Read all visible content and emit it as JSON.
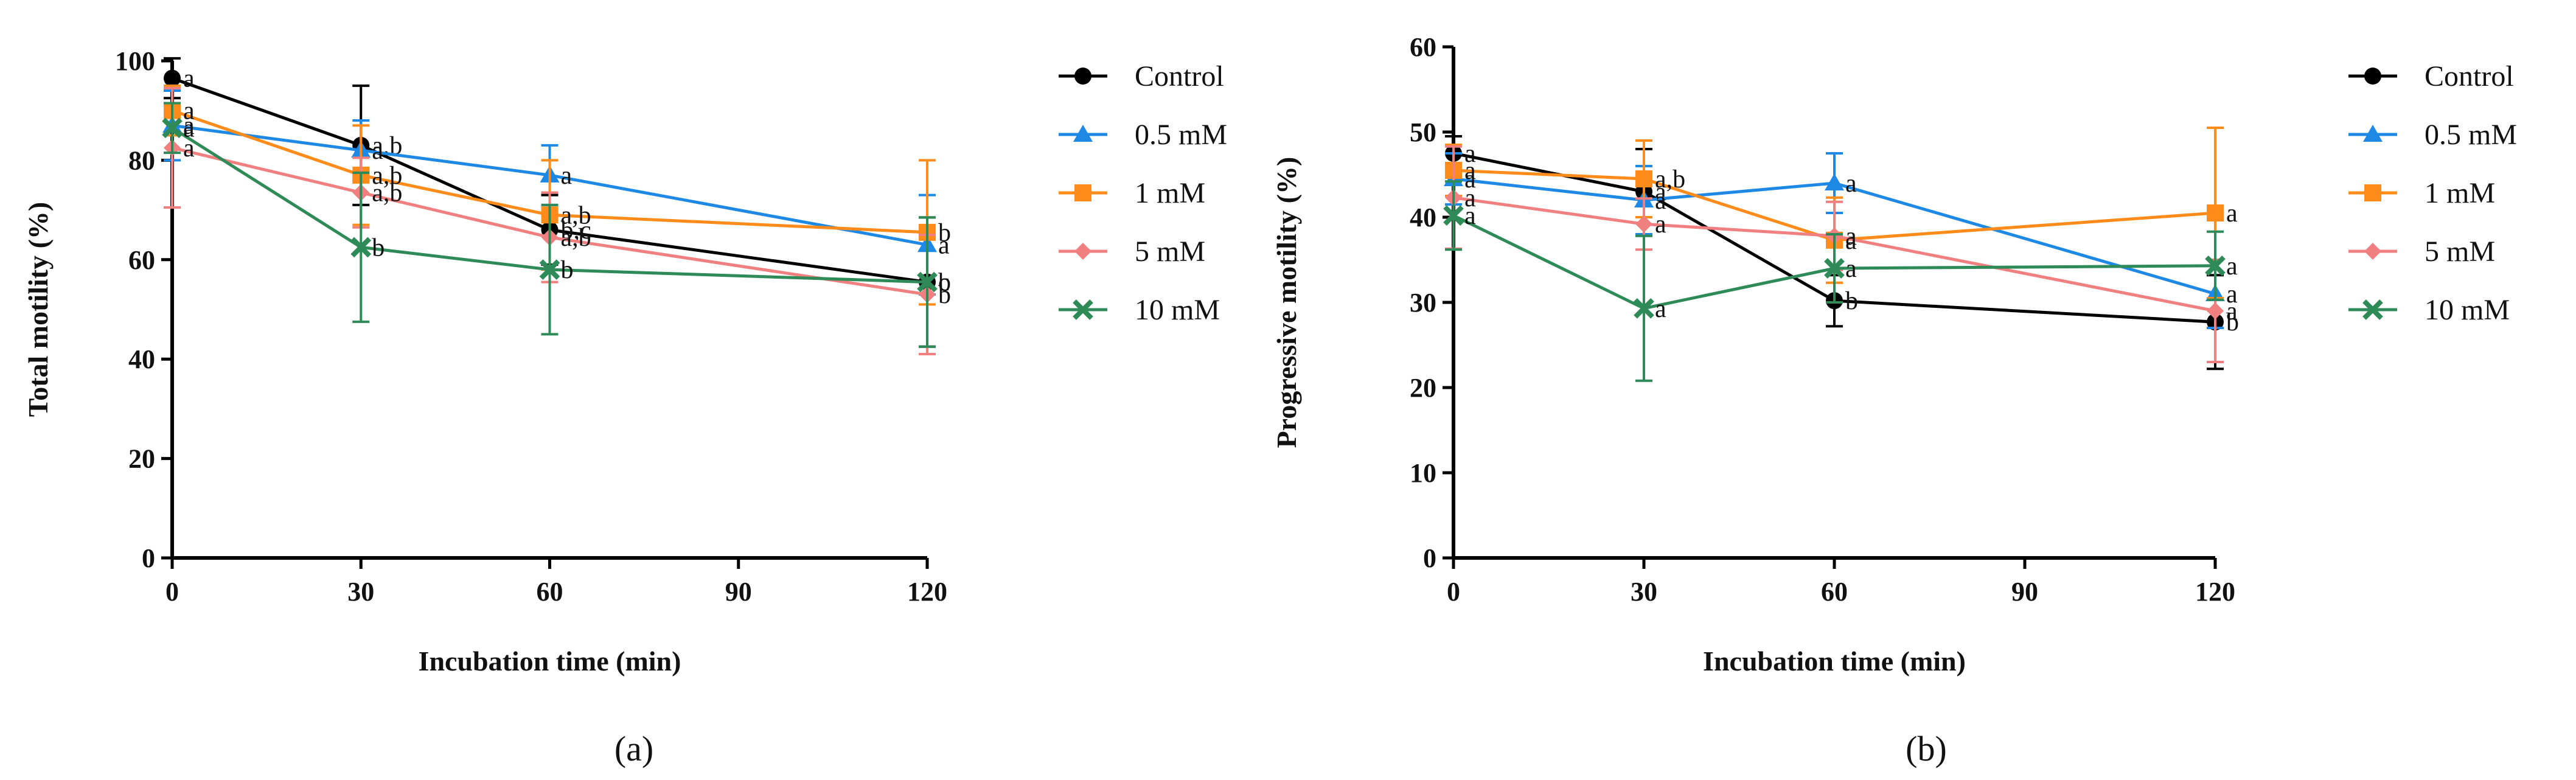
{
  "chart_data": [
    {
      "type": "line",
      "panel_label": "(a)",
      "xlabel": "Incubation time (min)",
      "ylabel": "Total motility (%)",
      "x": [
        0,
        30,
        60,
        120
      ],
      "xticks": [
        0,
        30,
        60,
        90,
        120
      ],
      "xlim": [
        0,
        120
      ],
      "yticks": [
        0,
        20,
        40,
        60,
        80,
        100
      ],
      "ylim": [
        0,
        100
      ],
      "legend_position": "right",
      "series": [
        {
          "name": "Control",
          "color": "#000000",
          "marker": "circle",
          "values": [
            96.5,
            83,
            66,
            55.5
          ],
          "errors": [
            4,
            12,
            7,
            13
          ],
          "letters": [
            "a",
            "a,b",
            "b,c",
            "c"
          ]
        },
        {
          "name": "0.5 mM",
          "color": "#1E88E5",
          "marker": "triangle",
          "values": [
            87,
            82,
            77,
            63
          ],
          "errors": [
            7,
            6,
            6,
            10
          ],
          "letters": [
            "a",
            "a",
            "a",
            "a"
          ]
        },
        {
          "name": "1 mM",
          "color": "#FF8C1A",
          "marker": "square",
          "values": [
            90,
            77,
            69,
            65.5
          ],
          "errors": [
            5,
            10,
            11,
            14.5
          ],
          "letters": [
            "a",
            "a,b",
            "a,b",
            "b"
          ]
        },
        {
          "name": "5 mM",
          "color": "#F08080",
          "marker": "diamond",
          "values": [
            82.5,
            73.5,
            64.5,
            53
          ],
          "errors": [
            12,
            7,
            9,
            12
          ],
          "letters": [
            "a",
            "a,b",
            "a,b",
            "b"
          ]
        },
        {
          "name": "10 mM",
          "color": "#2E8B57",
          "marker": "x",
          "values": [
            86.5,
            62.5,
            58,
            55.5
          ],
          "errors": [
            5,
            15,
            13,
            13
          ],
          "letters": [
            "a",
            "b",
            "b",
            "b"
          ]
        }
      ]
    },
    {
      "type": "line",
      "panel_label": "(b)",
      "xlabel": "Incubation time (min)",
      "ylabel": "Progressive motility (%)",
      "x": [
        0,
        30,
        60,
        120
      ],
      "xticks": [
        0,
        30,
        60,
        90,
        120
      ],
      "xlim": [
        0,
        120
      ],
      "yticks": [
        0,
        10,
        20,
        30,
        40,
        50,
        60
      ],
      "ylim": [
        0,
        60
      ],
      "legend_position": "right",
      "series": [
        {
          "name": "Control",
          "color": "#000000",
          "marker": "circle",
          "values": [
            47.5,
            43,
            30.2,
            27.7
          ],
          "errors": [
            2,
            5,
            3,
            5.5
          ],
          "letters": [
            "a",
            "a",
            "b",
            "b"
          ]
        },
        {
          "name": "0.5 mM",
          "color": "#1E88E5",
          "marker": "triangle",
          "values": [
            44.5,
            42,
            44,
            31
          ],
          "errors": [
            3,
            4,
            3.5,
            4
          ],
          "letters": [
            "a",
            "a",
            "a",
            "a"
          ]
        },
        {
          "name": "1 mM",
          "color": "#FF8C1A",
          "marker": "square",
          "values": [
            45.5,
            44.5,
            37.3,
            40.5
          ],
          "errors": [
            3,
            4.5,
            5,
            10
          ],
          "letters": [
            "a",
            "a,b",
            "a",
            "a"
          ]
        },
        {
          "name": "5 mM",
          "color": "#F08080",
          "marker": "diamond",
          "values": [
            42.3,
            39.2,
            37.8,
            29
          ],
          "errors": [
            6,
            3,
            4,
            6
          ],
          "letters": [
            "a",
            "a",
            "a",
            "a"
          ]
        },
        {
          "name": "10 mM",
          "color": "#2E8B57",
          "marker": "x",
          "values": [
            40.2,
            29.3,
            34,
            34.3
          ],
          "errors": [
            4,
            8.5,
            4,
            4
          ],
          "letters": [
            "a",
            "a",
            "a",
            "a"
          ]
        }
      ]
    }
  ]
}
